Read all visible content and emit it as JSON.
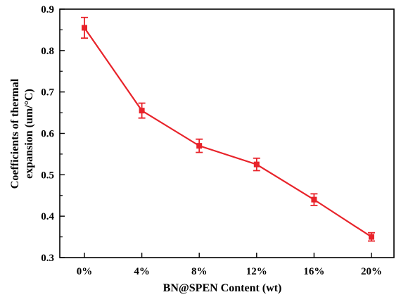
{
  "chart_data": {
    "type": "line",
    "title": "",
    "xlabel": "BN@SPEN Content (wt)",
    "ylabel_line1": "Coefficients of thermal",
    "ylabel_line2": "expansion (um/°C)",
    "categories": [
      "0%",
      "4%",
      "8%",
      "12%",
      "16%",
      "20%"
    ],
    "series": [
      {
        "values": [
          0.855,
          0.655,
          0.57,
          0.525,
          0.44,
          0.35
        ],
        "errors": [
          0.025,
          0.018,
          0.016,
          0.015,
          0.014,
          0.01
        ],
        "color": "#e8232a"
      }
    ],
    "ylim": [
      0.3,
      0.9
    ],
    "yticks": [
      "0.3",
      "0.4",
      "0.5",
      "0.6",
      "0.7",
      "0.8",
      "0.9"
    ],
    "grid": false,
    "legend": false
  }
}
